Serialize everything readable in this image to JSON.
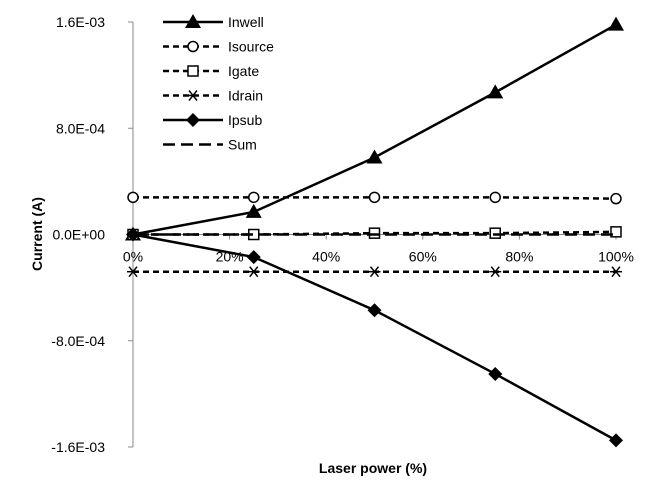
{
  "chart_data": {
    "type": "line",
    "title": "",
    "xlabel": "Laser power (%)",
    "ylabel": "Current  (A)",
    "x": [
      0,
      25,
      50,
      75,
      100
    ],
    "x_tick_values": [
      0,
      20,
      40,
      60,
      80,
      100
    ],
    "x_tick_labels": [
      "0%",
      "20%",
      "40%",
      "60%",
      "80%",
      "100%"
    ],
    "xlim": [
      0,
      100
    ],
    "y_tick_values": [
      -0.0016,
      -0.0008,
      0,
      0.0008,
      0.0016
    ],
    "y_tick_labels": [
      "-1.6E-03",
      "-8.0E-04",
      "0.0E+00",
      "8.0E-04",
      "1.6E-03"
    ],
    "ylim": [
      -0.0016,
      0.0016
    ],
    "grid": false,
    "legend_position": "top-left",
    "series": [
      {
        "name": "Inwell",
        "marker": "filled-triangle",
        "line": "solid",
        "values": [
          0,
          0.00017,
          0.00058,
          0.00107,
          0.00158
        ]
      },
      {
        "name": "Isource",
        "marker": "open-circle",
        "line": "dashed",
        "values": [
          0.00028,
          0.00028,
          0.00028,
          0.00028,
          0.00027
        ]
      },
      {
        "name": "Igate",
        "marker": "open-square",
        "line": "dashed",
        "values": [
          0,
          0,
          1e-05,
          1e-05,
          2e-05
        ]
      },
      {
        "name": "Idrain",
        "marker": "asterisk",
        "line": "dashed",
        "values": [
          -0.00028,
          -0.00028,
          -0.00028,
          -0.00028,
          -0.00028
        ]
      },
      {
        "name": "Ipsub",
        "marker": "filled-diamond",
        "line": "solid",
        "values": [
          0,
          -0.00017,
          -0.00057,
          -0.00105,
          -0.00155
        ]
      },
      {
        "name": "Sum",
        "marker": "none",
        "line": "long-dashed",
        "values": [
          0,
          0,
          0,
          0,
          0
        ]
      }
    ]
  }
}
